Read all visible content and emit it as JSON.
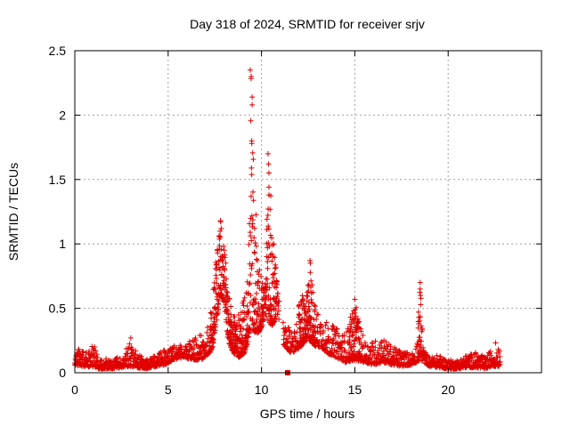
{
  "chart_data": {
    "type": "scatter",
    "title": "Day 318 of 2024, SRMTID for receiver srjv",
    "xlabel": "GPS time / hours",
    "ylabel": "SRMTID / TECUs",
    "xlim": [
      0,
      25
    ],
    "ylim": [
      0,
      2.5
    ],
    "x_ticks": [
      0,
      5,
      10,
      15,
      20
    ],
    "x_tick_labels": [
      "0",
      "5",
      "10",
      "15",
      "20"
    ],
    "y_ticks": [
      0,
      0.5,
      1,
      1.5,
      2,
      2.5
    ],
    "y_tick_labels": [
      "0",
      "0.5",
      "1",
      "1.5",
      "2",
      "2.5"
    ],
    "grid": true,
    "marker": "+",
    "color": "#e00000",
    "envelope": [
      [
        0.0,
        0.06,
        0.14
      ],
      [
        0.3,
        0.05,
        0.2
      ],
      [
        0.6,
        0.05,
        0.18
      ],
      [
        1.0,
        0.04,
        0.22
      ],
      [
        1.3,
        0.03,
        0.12
      ],
      [
        2.0,
        0.03,
        0.1
      ],
      [
        2.6,
        0.04,
        0.14
      ],
      [
        3.0,
        0.05,
        0.27
      ],
      [
        3.3,
        0.04,
        0.16
      ],
      [
        3.8,
        0.03,
        0.1
      ],
      [
        4.4,
        0.05,
        0.14
      ],
      [
        4.8,
        0.06,
        0.2
      ],
      [
        5.3,
        0.1,
        0.22
      ],
      [
        5.8,
        0.12,
        0.22
      ],
      [
        6.3,
        0.1,
        0.26
      ],
      [
        6.8,
        0.1,
        0.3
      ],
      [
        7.2,
        0.15,
        0.4
      ],
      [
        7.4,
        0.2,
        0.6
      ],
      [
        7.6,
        0.4,
        0.95
      ],
      [
        7.8,
        0.6,
        1.18
      ],
      [
        8.0,
        0.55,
        1.05
      ],
      [
        8.2,
        0.25,
        0.6
      ],
      [
        8.5,
        0.15,
        0.5
      ],
      [
        8.8,
        0.12,
        0.45
      ],
      [
        9.1,
        0.15,
        0.6
      ],
      [
        9.3,
        0.25,
        0.9
      ],
      [
        9.45,
        0.4,
        2.35
      ],
      [
        9.6,
        0.3,
        1.55
      ],
      [
        9.8,
        0.3,
        1.0
      ],
      [
        10.0,
        0.35,
        0.75
      ],
      [
        10.2,
        0.45,
        0.7
      ],
      [
        10.35,
        0.4,
        1.7
      ],
      [
        10.5,
        0.35,
        1.4
      ],
      [
        10.7,
        0.4,
        0.95
      ],
      [
        10.85,
        0.45,
        0.75
      ],
      [
        11.2,
        0.2,
        0.35
      ],
      [
        11.6,
        0.15,
        0.35
      ],
      [
        11.9,
        0.18,
        0.38
      ],
      [
        12.1,
        0.2,
        0.65
      ],
      [
        12.4,
        0.25,
        0.55
      ],
      [
        12.6,
        0.25,
        0.87
      ],
      [
        12.9,
        0.2,
        0.5
      ],
      [
        13.2,
        0.2,
        0.45
      ],
      [
        13.5,
        0.15,
        0.4
      ],
      [
        14.0,
        0.12,
        0.35
      ],
      [
        14.5,
        0.08,
        0.3
      ],
      [
        15.0,
        0.1,
        0.55
      ],
      [
        15.5,
        0.08,
        0.25
      ],
      [
        16.0,
        0.06,
        0.25
      ],
      [
        16.5,
        0.08,
        0.28
      ],
      [
        17.0,
        0.06,
        0.2
      ],
      [
        17.5,
        0.05,
        0.18
      ],
      [
        18.0,
        0.06,
        0.15
      ],
      [
        18.3,
        0.08,
        0.22
      ],
      [
        18.5,
        0.1,
        0.7
      ],
      [
        18.7,
        0.08,
        0.18
      ],
      [
        19.0,
        0.05,
        0.12
      ],
      [
        19.5,
        0.04,
        0.14
      ],
      [
        20.0,
        0.03,
        0.1
      ],
      [
        20.5,
        0.03,
        0.1
      ],
      [
        21.0,
        0.04,
        0.14
      ],
      [
        21.5,
        0.04,
        0.16
      ],
      [
        22.0,
        0.03,
        0.12
      ],
      [
        22.3,
        0.05,
        0.18
      ],
      [
        22.6,
        0.05,
        0.25
      ],
      [
        22.8,
        0.05,
        0.25
      ]
    ],
    "extra_points": [
      [
        9.4,
        2.35
      ],
      [
        9.45,
        2.3
      ],
      [
        9.5,
        2.14
      ],
      [
        9.5,
        2.08
      ],
      [
        9.48,
        1.78
      ],
      [
        10.35,
        1.7
      ],
      [
        10.38,
        1.62
      ],
      [
        10.4,
        1.55
      ],
      [
        10.4,
        1.38
      ],
      [
        18.5,
        0.7
      ],
      [
        18.5,
        0.65
      ],
      [
        18.52,
        0.6
      ],
      [
        12.6,
        0.87
      ],
      [
        12.62,
        0.85
      ],
      [
        3.0,
        0.27
      ],
      [
        15.0,
        0.57
      ],
      [
        7.8,
        1.18
      ],
      [
        7.85,
        1.12
      ]
    ],
    "outlier_points": [
      [
        11.4,
        0.0
      ]
    ]
  }
}
